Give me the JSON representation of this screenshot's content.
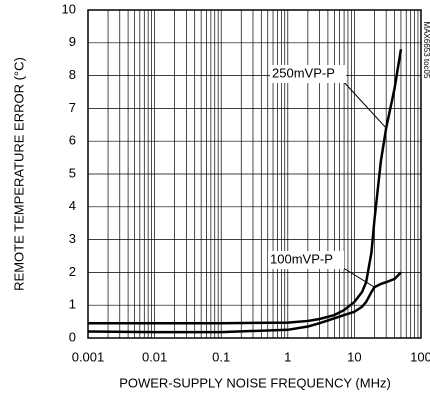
{
  "chart_data": {
    "type": "line",
    "xlabel": "POWER-SUPPLY NOISE FREQUENCY (MHz)",
    "ylabel": "REMOTE TEMPERATURE ERROR (°C)",
    "side_note": "MAX6653 toc05",
    "x": [
      0.001,
      0.01,
      0.1,
      1,
      2,
      3,
      5,
      7,
      10,
      13,
      15,
      18,
      20,
      25,
      30,
      40,
      50
    ],
    "series": [
      {
        "name": "250mVP-P",
        "color": "#000000",
        "values": [
          0.45,
          0.45,
          0.45,
          0.47,
          0.52,
          0.58,
          0.7,
          0.85,
          1.1,
          1.4,
          1.7,
          2.6,
          3.6,
          5.4,
          6.4,
          7.6,
          8.8
        ]
      },
      {
        "name": "100mVP-P",
        "color": "#000000",
        "values": [
          0.2,
          0.18,
          0.18,
          0.25,
          0.35,
          0.45,
          0.6,
          0.7,
          0.8,
          0.95,
          1.1,
          1.4,
          1.55,
          1.65,
          1.7,
          1.8,
          2.0
        ]
      }
    ],
    "xscale": "log",
    "xlim": [
      0.001,
      100
    ],
    "xticks": [
      0.001,
      0.01,
      0.1,
      1,
      10,
      100
    ],
    "ylim": [
      0,
      10
    ],
    "yticks": [
      0,
      1,
      2,
      3,
      4,
      5,
      6,
      7,
      8,
      9,
      10
    ],
    "grid": true
  }
}
